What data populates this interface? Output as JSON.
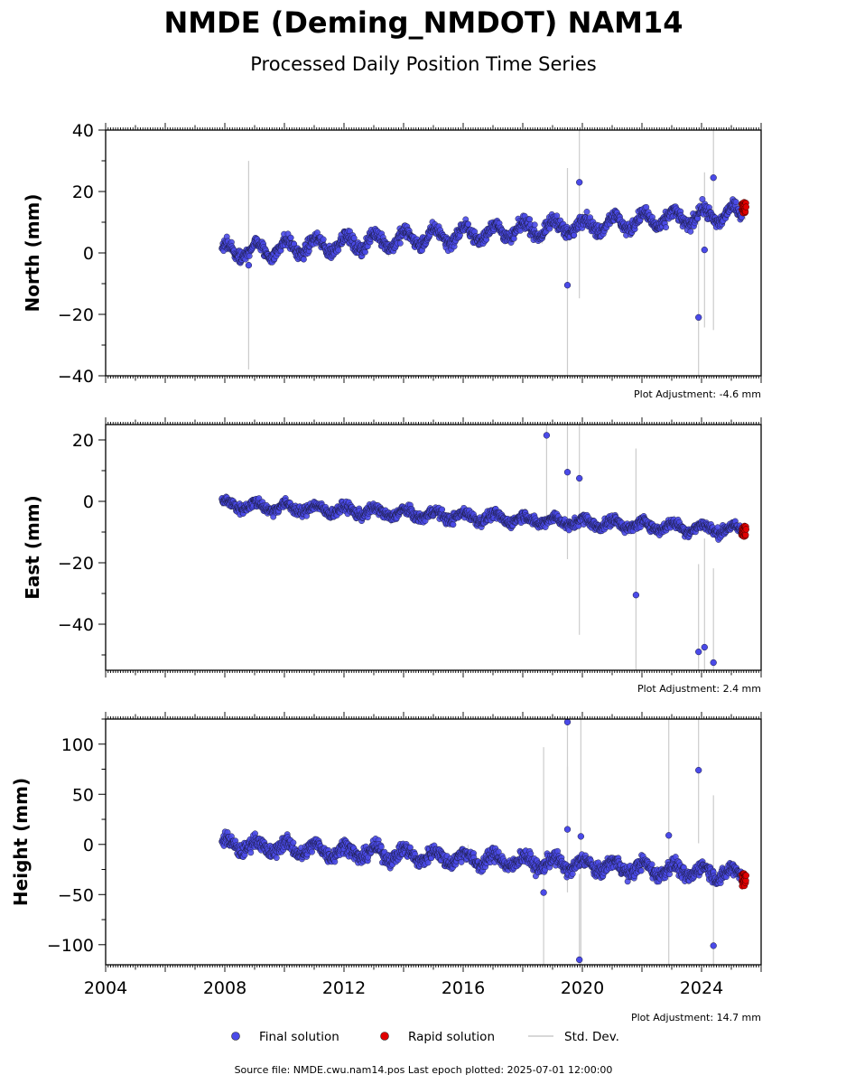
{
  "title": "NMDE (Deming_NMDOT) NAM14",
  "subtitle": "Processed Daily Position Time Series",
  "footer": "Source file: NMDE.cwu.nam14.pos  Last epoch plotted: 2025-07-01 12:00:00",
  "legend": {
    "final": "Final solution",
    "rapid": "Rapid solution",
    "std": "Std. Dev.",
    "placement": "bottom-center"
  },
  "colors": {
    "final": "#4a4ae8",
    "rapid": "#e00000",
    "std": "#cccccc"
  },
  "chart_data": [
    {
      "type": "scatter",
      "ylabel": "North (mm)",
      "adjustment": "Plot Adjustment: -4.6 mm",
      "xlim": [
        2004,
        2026
      ],
      "ylim": [
        -40,
        40
      ],
      "yticks": [
        -40,
        -20,
        0,
        20,
        40
      ],
      "xticks": [
        2004,
        2008,
        2012,
        2016,
        2020,
        2024
      ],
      "trend": {
        "start_year": 2007.9,
        "start_value": 0,
        "end_year": 2025.5,
        "end_value": 13,
        "seasonal_amplitude": 2.5,
        "scatter": 1.5
      },
      "outliers": [
        {
          "x": 2008.8,
          "y": -4
        },
        {
          "x": 2019.5,
          "y": -10.5
        },
        {
          "x": 2019.9,
          "y": 23
        },
        {
          "x": 2023.9,
          "y": -21
        },
        {
          "x": 2024.1,
          "y": 1
        },
        {
          "x": 2024.4,
          "y": 24.5
        }
      ],
      "rapid": {
        "start_year": 2025.35,
        "end_year": 2025.5,
        "min": 13,
        "max": 16.5
      }
    },
    {
      "type": "scatter",
      "ylabel": "East (mm)",
      "adjustment": "Plot Adjustment: 2.4 mm",
      "xlim": [
        2004,
        2026
      ],
      "ylim": [
        -55,
        25
      ],
      "yticks": [
        -40,
        -20,
        0,
        20
      ],
      "xticks": [
        2004,
        2008,
        2012,
        2016,
        2020,
        2024
      ],
      "trend": {
        "start_year": 2007.9,
        "start_value": -1,
        "end_year": 2025.5,
        "end_value": -9.5,
        "seasonal_amplitude": 1.3,
        "scatter": 1.2
      },
      "outliers": [
        {
          "x": 2018.8,
          "y": 21.5
        },
        {
          "x": 2019.5,
          "y": 9.5
        },
        {
          "x": 2019.9,
          "y": 7.5
        },
        {
          "x": 2021.8,
          "y": -30.5
        },
        {
          "x": 2023.9,
          "y": -49
        },
        {
          "x": 2024.1,
          "y": -47.5
        },
        {
          "x": 2024.4,
          "y": -52.5
        }
      ],
      "rapid": {
        "start_year": 2025.35,
        "end_year": 2025.5,
        "min": -11.5,
        "max": -8
      }
    },
    {
      "type": "scatter",
      "ylabel": "Height (mm)",
      "adjustment": "Plot Adjustment: 14.7 mm",
      "xlim": [
        2004,
        2026
      ],
      "ylim": [
        -120,
        125
      ],
      "yticks": [
        -100,
        -50,
        0,
        50,
        100
      ],
      "xticks": [
        2004,
        2008,
        2012,
        2016,
        2020,
        2024
      ],
      "xticklabels": [
        "2004",
        "2008",
        "2012",
        "2016",
        "2020",
        "2024"
      ],
      "trend": {
        "start_year": 2007.9,
        "start_value": 0,
        "end_year": 2025.5,
        "end_value": -30,
        "seasonal_amplitude": 6,
        "scatter": 5
      },
      "outliers": [
        {
          "x": 2018.7,
          "y": -48
        },
        {
          "x": 2019.5,
          "y": 122
        },
        {
          "x": 2019.5,
          "y": 15
        },
        {
          "x": 2019.9,
          "y": -115
        },
        {
          "x": 2019.95,
          "y": 8
        },
        {
          "x": 2022.9,
          "y": 9
        },
        {
          "x": 2023.9,
          "y": 74
        },
        {
          "x": 2024.4,
          "y": -101
        }
      ],
      "rapid": {
        "start_year": 2025.35,
        "end_year": 2025.5,
        "min": -43,
        "max": -28
      }
    }
  ]
}
